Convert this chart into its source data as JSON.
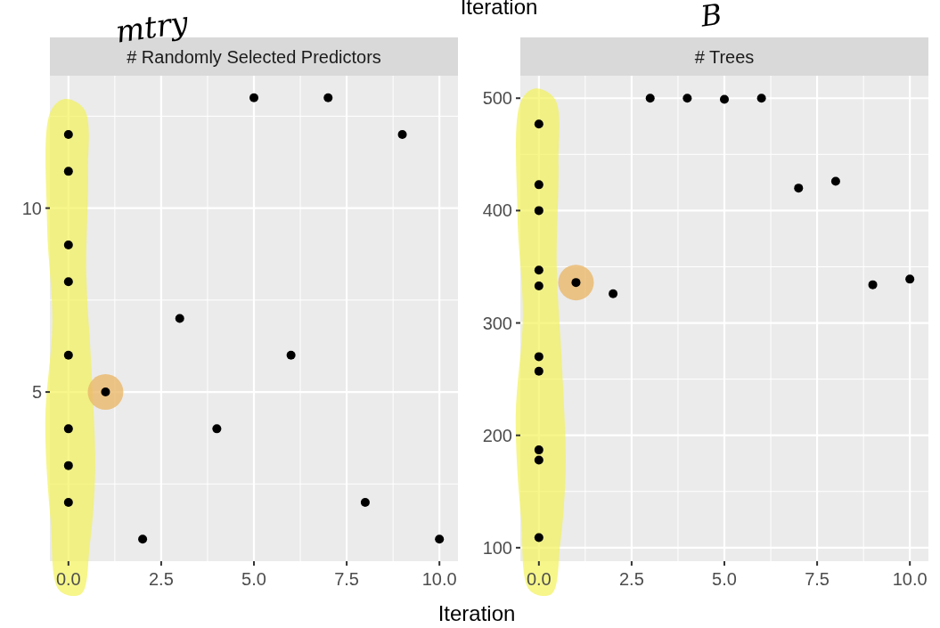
{
  "chart_data": [
    {
      "type": "scatter",
      "title": "# Randomly Selected Predictors",
      "xlabel": "Iteration",
      "annotations": [
        "Iteration",
        "mtry"
      ],
      "x": [
        0,
        0,
        0,
        0,
        0,
        0,
        0,
        0,
        1,
        2,
        3,
        4,
        5,
        6,
        7,
        8,
        9,
        10
      ],
      "values": [
        12,
        11,
        9,
        8,
        6,
        4,
        3,
        2,
        5,
        1,
        7,
        4,
        13,
        6,
        13,
        2,
        12,
        1
      ],
      "color": "#000000",
      "marker": "circle",
      "grid": true,
      "xlim": [
        -0.5,
        10.5
      ],
      "xticks": [
        {
          "value": 0,
          "label": "0.0"
        },
        {
          "value": 2.5,
          "label": "2.5"
        },
        {
          "value": 5,
          "label": "5.0"
        },
        {
          "value": 7.5,
          "label": "7.5"
        },
        {
          "value": 10,
          "label": "10.0"
        }
      ],
      "ylim": [
        0.4,
        13.6
      ],
      "yticks": [
        5,
        10
      ]
    },
    {
      "type": "scatter",
      "title": "# Trees",
      "annotations": [
        "B"
      ],
      "x": [
        0,
        0,
        0,
        0,
        0,
        0,
        0,
        0,
        0,
        0,
        1,
        2,
        3,
        4,
        5,
        6,
        7,
        8,
        9,
        10
      ],
      "values": [
        477,
        423,
        400,
        347,
        333,
        270,
        257,
        187,
        178,
        109,
        336,
        326,
        500,
        500,
        499,
        500,
        420,
        426,
        334,
        339
      ],
      "color": "#000000",
      "marker": "circle",
      "grid": true,
      "xlim": [
        -0.5,
        10.5
      ],
      "xticks": [
        {
          "value": 0,
          "label": "0.0"
        },
        {
          "value": 2.5,
          "label": "2.5"
        },
        {
          "value": 5,
          "label": "5.0"
        },
        {
          "value": 7.5,
          "label": "7.5"
        },
        {
          "value": 10,
          "label": "10.0"
        }
      ],
      "ylim": [
        88,
        520
      ],
      "yticks": [
        100,
        200,
        300,
        400,
        500
      ]
    }
  ]
}
